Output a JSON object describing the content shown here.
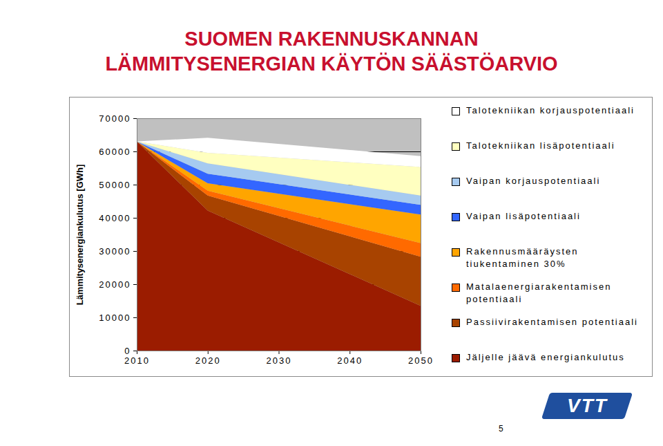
{
  "chart_data": {
    "type": "area",
    "stacked": true,
    "title": "SUOMEN RAKENNUSKANNAN\nLÄMMITYSENERGIAN KÄYTÖN SÄÄSTÖARVIO",
    "y_label": "Lämmitysenergiankulutus [GWh]",
    "x": [
      2010,
      2020,
      2050
    ],
    "xlim": [
      2010,
      2050
    ],
    "xticks": [
      2010,
      2020,
      2030,
      2040,
      2050
    ],
    "ylim": [
      0,
      70000
    ],
    "yticks": [
      0,
      10000,
      20000,
      30000,
      40000,
      50000,
      60000,
      70000
    ],
    "grid": true,
    "legend": "right",
    "series": [
      {
        "name": "Jäljelle jäävä energiankulutus",
        "color": "#9b1c00",
        "values": [
          63000,
          42200,
          13500
        ]
      },
      {
        "name": "Passiivirakentamisen potentiaali",
        "color": "#a84300",
        "values": [
          0,
          4500,
          14800
        ]
      },
      {
        "name": "Matalaenergiarakentamisen potentiaali",
        "color": "#ff6a00",
        "values": [
          0,
          1500,
          4100
        ]
      },
      {
        "name": "Rakennusmääräysten tiukentaminen 30%",
        "color": "#ffa500",
        "values": [
          0,
          2200,
          8600
        ]
      },
      {
        "name": "Vaipan lisäpotentiaali",
        "color": "#3366ff",
        "values": [
          0,
          2900,
          2900
        ]
      },
      {
        "name": "Vaipan korjauspotentiaali",
        "color": "#a6caf0",
        "values": [
          0,
          3100,
          2800
        ]
      },
      {
        "name": "Talotekniikan lisäpotentiaali",
        "color": "#ffffc0",
        "values": [
          0,
          3200,
          8600
        ]
      },
      {
        "name": "Talotekniikan korjauspotentiaali",
        "color": "#ffffff",
        "values": [
          0,
          4500,
          3300
        ]
      }
    ]
  },
  "page_number": "5",
  "logo": "VTT"
}
